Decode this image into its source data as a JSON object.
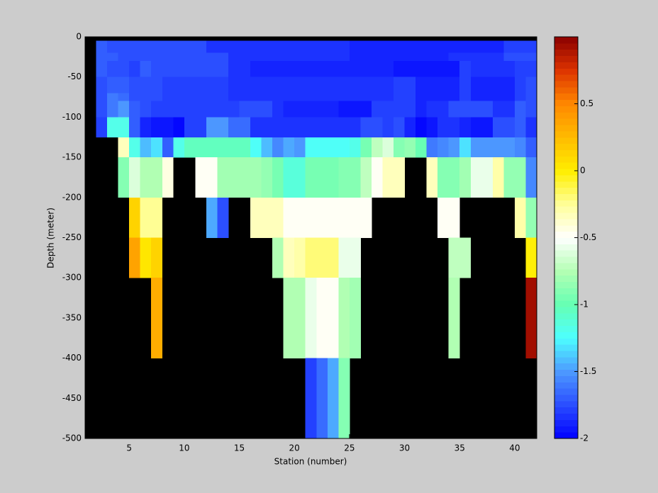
{
  "chart_data": {
    "type": "heatmap",
    "xlabel": "Station (number)",
    "ylabel": "Depth (meter)",
    "xlim": [
      1,
      42
    ],
    "ylim": [
      -500,
      0
    ],
    "xticks": [
      5,
      10,
      15,
      20,
      25,
      30,
      35,
      40
    ],
    "yticks": [
      0,
      -50,
      -100,
      -150,
      -200,
      -250,
      -300,
      -350,
      -400,
      -450,
      -500
    ],
    "clim": [
      -2,
      1
    ],
    "cticks": [
      0.5,
      0,
      -0.5,
      -1,
      -1.5,
      -2
    ],
    "background": "#000000",
    "colormap": [
      "#0000ff",
      "#2a4dff",
      "#4d99ff",
      "#4dffff",
      "#66ffb3",
      "#b3ffb3",
      "#ffffff",
      "#ffff99",
      "#ffee00",
      "#ffbb00",
      "#ff8800",
      "#dd3300",
      "#8b0000"
    ],
    "x_edges": [
      2,
      3,
      4,
      5,
      6,
      7,
      8,
      9,
      10,
      11,
      12,
      13,
      14,
      15,
      16,
      17,
      18,
      19,
      20,
      21,
      22,
      23,
      24,
      25,
      26,
      27,
      28,
      29,
      30,
      31,
      32,
      33,
      34,
      35,
      36,
      37,
      38,
      39,
      40,
      41,
      42
    ],
    "y_edges": [
      -5,
      -20,
      -30,
      -50,
      -70,
      -80,
      -100,
      -125,
      -150,
      -200,
      -250,
      -300,
      -400,
      -500
    ],
    "values": [
      [
        -1.7,
        -1.75,
        -1.75,
        -1.75,
        -1.75,
        -1.75,
        -1.75,
        -1.75,
        -1.75,
        -1.75,
        -1.82,
        -1.82,
        -1.82,
        -1.82,
        -1.82,
        -1.82,
        -1.82,
        -1.82,
        -1.82,
        -1.82,
        -1.82,
        -1.82,
        -1.82,
        -1.88,
        -1.88,
        -1.88,
        -1.88,
        -1.88,
        -1.88,
        -1.88,
        -1.88,
        -1.88,
        -1.88,
        -1.88,
        -1.88,
        -1.88,
        -1.88,
        -1.8,
        -1.8,
        -1.8
      ],
      [
        -1.7,
        -1.7,
        -1.75,
        -1.75,
        -1.75,
        -1.75,
        -1.75,
        -1.75,
        -1.75,
        -1.75,
        -1.75,
        -1.75,
        -1.85,
        -1.85,
        -1.85,
        -1.85,
        -1.85,
        -1.85,
        -1.85,
        -1.85,
        -1.85,
        -1.85,
        -1.85,
        -1.9,
        -1.9,
        -1.9,
        -1.9,
        -1.9,
        -1.9,
        -1.9,
        -1.9,
        -1.9,
        -1.85,
        -1.85,
        -1.85,
        -1.85,
        -1.85,
        -1.75,
        -1.75,
        -1.75
      ],
      [
        -1.7,
        -1.75,
        -1.72,
        -1.78,
        -1.7,
        -1.75,
        -1.75,
        -1.75,
        -1.75,
        -1.75,
        -1.75,
        -1.75,
        -1.82,
        -1.82,
        -1.88,
        -1.88,
        -1.88,
        -1.88,
        -1.88,
        -1.88,
        -1.88,
        -1.88,
        -1.88,
        -1.88,
        -1.88,
        -1.88,
        -1.88,
        -1.92,
        -1.92,
        -1.92,
        -1.92,
        -1.92,
        -1.92,
        -1.8,
        -1.85,
        -1.85,
        -1.85,
        -1.85,
        -1.78,
        -1.8
      ],
      [
        -1.72,
        -1.68,
        -1.68,
        -1.75,
        -1.75,
        -1.75,
        -1.78,
        -1.78,
        -1.78,
        -1.78,
        -1.78,
        -1.78,
        -1.82,
        -1.82,
        -1.82,
        -1.82,
        -1.82,
        -1.85,
        -1.85,
        -1.85,
        -1.85,
        -1.85,
        -1.85,
        -1.85,
        -1.85,
        -1.85,
        -1.85,
        -1.8,
        -1.8,
        -1.88,
        -1.88,
        -1.88,
        -1.88,
        -1.8,
        -1.86,
        -1.86,
        -1.86,
        -1.86,
        -1.78,
        -1.75
      ],
      [
        -1.72,
        -1.6,
        -1.65,
        -1.75,
        -1.75,
        -1.75,
        -1.78,
        -1.78,
        -1.78,
        -1.78,
        -1.78,
        -1.78,
        -1.82,
        -1.82,
        -1.82,
        -1.82,
        -1.82,
        -1.85,
        -1.85,
        -1.85,
        -1.85,
        -1.85,
        -1.85,
        -1.85,
        -1.85,
        -1.85,
        -1.85,
        -1.8,
        -1.8,
        -1.88,
        -1.88,
        -1.88,
        -1.88,
        -1.8,
        -1.86,
        -1.86,
        -1.86,
        -1.86,
        -1.78,
        -1.75
      ],
      [
        -1.75,
        -1.62,
        -1.5,
        -1.7,
        -1.75,
        -1.8,
        -1.8,
        -1.78,
        -1.78,
        -1.78,
        -1.8,
        -1.8,
        -1.8,
        -1.75,
        -1.75,
        -1.75,
        -1.85,
        -1.88,
        -1.88,
        -1.88,
        -1.88,
        -1.88,
        -1.92,
        -1.92,
        -1.92,
        -1.8,
        -1.8,
        -1.8,
        -1.8,
        -1.88,
        -1.82,
        -1.82,
        -1.76,
        -1.76,
        -1.76,
        -1.76,
        -1.85,
        -1.85,
        -1.7,
        -1.75
      ],
      [
        -1.8,
        -1.2,
        -1.2,
        -1.7,
        -1.9,
        -1.95,
        -1.95,
        -2,
        -1.8,
        -1.8,
        -1.5,
        -1.5,
        -1.65,
        -1.65,
        -1.85,
        -1.85,
        -1.85,
        -1.85,
        -1.85,
        -1.85,
        -1.85,
        -1.85,
        -1.85,
        -1.85,
        -1.75,
        -1.75,
        -1.8,
        -1.75,
        -1.9,
        -2,
        -1.95,
        -1.85,
        -1.85,
        -1.88,
        -1.95,
        -1.95,
        -1.75,
        -1.75,
        -1.7,
        -1.85
      ],
      [
        null,
        null,
        -0.35,
        -1.2,
        -1.4,
        -1.3,
        -1.7,
        -1.2,
        -1.05,
        -1.05,
        -1.05,
        -1.05,
        -1.05,
        -1.05,
        -1.25,
        -1.4,
        -1.55,
        -1.45,
        -1.5,
        -1.25,
        -1.25,
        -1.25,
        -1.25,
        -1.2,
        -0.95,
        -0.7,
        -0.6,
        -0.9,
        -0.85,
        -1.0,
        -1.6,
        -1.55,
        -1.5,
        -1.3,
        -1.5,
        -1.5,
        -1.5,
        -1.5,
        -1.55,
        -1.7
      ],
      [
        null,
        null,
        -0.9,
        -0.6,
        -0.75,
        -0.75,
        -0.45,
        null,
        null,
        -0.5,
        -0.5,
        -0.8,
        -0.8,
        -0.8,
        -0.8,
        -0.85,
        -0.95,
        -1.15,
        -1.15,
        -0.95,
        -0.95,
        -0.95,
        -0.9,
        -0.9,
        -0.7,
        -0.5,
        -0.35,
        -0.35,
        null,
        null,
        -0.35,
        -0.9,
        -0.9,
        -0.8,
        -0.55,
        -0.55,
        -0.3,
        -0.85,
        -0.85,
        -1.55
      ],
      [
        null,
        null,
        null,
        0.15,
        -0.25,
        -0.25,
        null,
        null,
        null,
        null,
        -1.45,
        -1.75,
        null,
        null,
        -0.35,
        -0.35,
        -0.35,
        -0.5,
        -0.5,
        -0.5,
        -0.5,
        -0.5,
        -0.5,
        -0.5,
        -0.5,
        null,
        null,
        null,
        null,
        null,
        null,
        -0.5,
        -0.5,
        null,
        null,
        null,
        null,
        null,
        -0.3,
        -0.85
      ],
      [
        null,
        null,
        null,
        0.35,
        0.05,
        0.15,
        null,
        null,
        null,
        null,
        null,
        null,
        null,
        null,
        null,
        null,
        -0.75,
        -0.35,
        -0.3,
        -0.2,
        -0.2,
        -0.2,
        -0.55,
        -0.55,
        null,
        null,
        null,
        null,
        null,
        null,
        null,
        null,
        -0.7,
        -0.7,
        null,
        null,
        null,
        null,
        null,
        0.0
      ],
      [
        null,
        null,
        null,
        null,
        null,
        0.3,
        null,
        null,
        null,
        null,
        null,
        null,
        null,
        null,
        null,
        null,
        null,
        -0.75,
        -0.75,
        -0.55,
        -0.5,
        -0.5,
        -0.75,
        -0.8,
        null,
        null,
        null,
        null,
        null,
        null,
        null,
        null,
        -0.75,
        null,
        null,
        null,
        null,
        null,
        null,
        0.95
      ],
      [
        null,
        null,
        null,
        null,
        null,
        null,
        null,
        null,
        null,
        null,
        null,
        null,
        null,
        null,
        null,
        null,
        null,
        null,
        null,
        -1.8,
        -1.65,
        -1.45,
        -0.9,
        null,
        null,
        null,
        null,
        null,
        null,
        null,
        null,
        null,
        null,
        null,
        null,
        null,
        null,
        null,
        null,
        null
      ]
    ]
  }
}
